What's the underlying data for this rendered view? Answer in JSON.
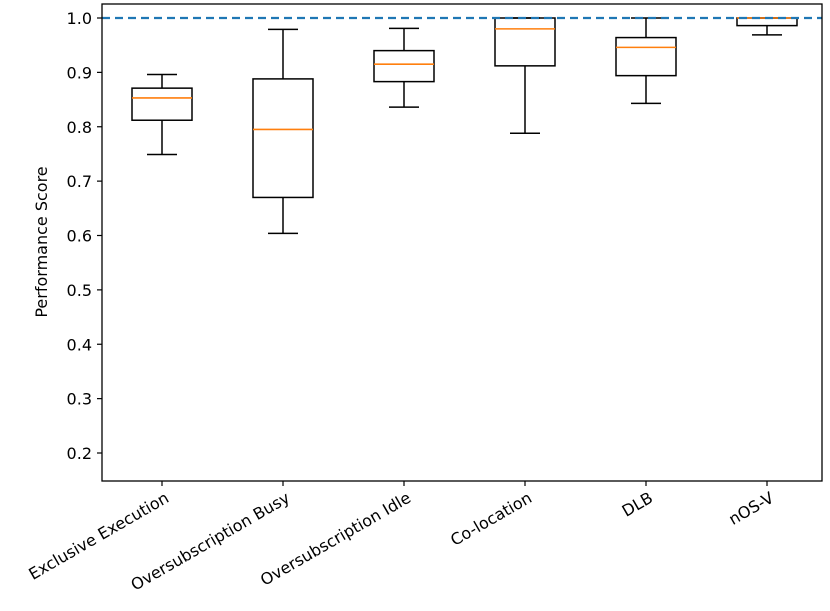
{
  "chart_data": {
    "type": "boxplot",
    "title": "",
    "xlabel": "",
    "ylabel": "Performance Score",
    "ylim": [
      0.15,
      1.02
    ],
    "yticks": [
      0.2,
      0.3,
      0.4,
      0.5,
      0.6,
      0.7,
      0.8,
      0.9,
      1.0
    ],
    "ytick_labels": [
      "0.2",
      "0.3",
      "0.4",
      "0.5",
      "0.6",
      "0.7",
      "0.8",
      "0.9",
      "1.0"
    ],
    "reference_line": {
      "value": 1.0,
      "style": "dashed",
      "color": "#1f77b4"
    },
    "box_color": "#000000",
    "median_color": "#ff7f0e",
    "categories": [
      "Exclusive Execution",
      "Oversubscription Busy",
      "Oversubscription Idle",
      "Co-location",
      "DLB",
      "nOS-V"
    ],
    "boxes": [
      {
        "whisker_low": 0.749,
        "q1": 0.812,
        "median": 0.853,
        "q3": 0.871,
        "whisker_high": 0.896
      },
      {
        "whisker_low": 0.604,
        "q1": 0.67,
        "median": 0.795,
        "q3": 0.888,
        "whisker_high": 0.979
      },
      {
        "whisker_low": 0.836,
        "q1": 0.883,
        "median": 0.915,
        "q3": 0.94,
        "whisker_high": 0.981
      },
      {
        "whisker_low": 0.788,
        "q1": 0.912,
        "median": 0.98,
        "q3": 1.0,
        "whisker_high": 1.0
      },
      {
        "whisker_low": 0.843,
        "q1": 0.894,
        "median": 0.946,
        "q3": 0.964,
        "whisker_high": 1.0
      },
      {
        "whisker_low": 0.969,
        "q1": 0.986,
        "median": 1.0,
        "q3": 1.0,
        "whisker_high": 1.0
      }
    ]
  }
}
